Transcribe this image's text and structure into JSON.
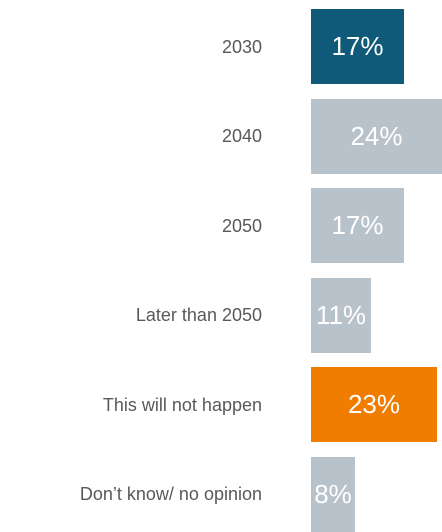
{
  "chart_data": {
    "type": "bar",
    "orientation": "horizontal",
    "categories": [
      "2030",
      "2040",
      "2050",
      "Later than 2050",
      "This will not happen",
      "Don’t know/ no opinion"
    ],
    "values": [
      17,
      24,
      17,
      11,
      23,
      8
    ],
    "value_labels": [
      "17%",
      "24%",
      "17%",
      "11%",
      "23%",
      "8%"
    ],
    "colors": [
      "#0e5a78",
      "#b8c2cb",
      "#b8c2cb",
      "#b8c2cb",
      "#f07c00",
      "#b8c2cb"
    ],
    "xlim": [
      0,
      24
    ],
    "grid": false,
    "legend": "none"
  }
}
